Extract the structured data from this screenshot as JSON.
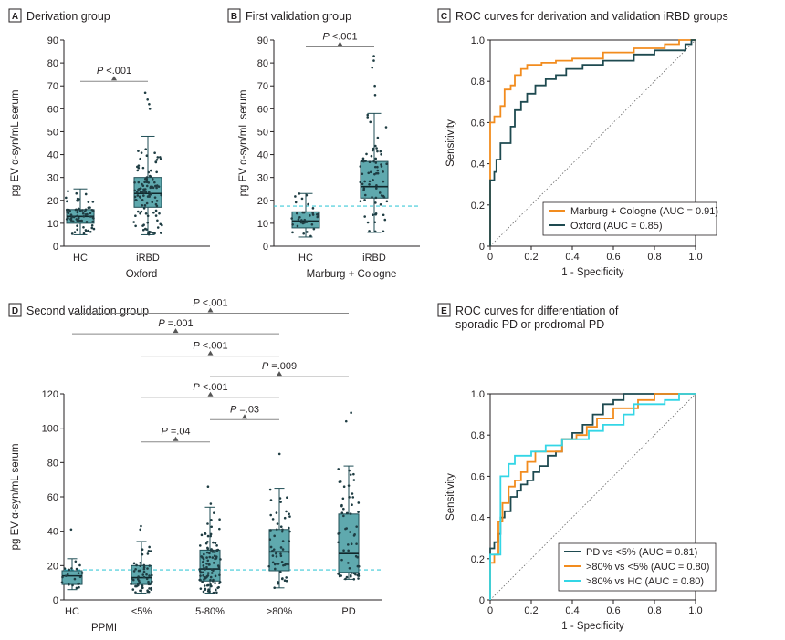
{
  "colors": {
    "box_fill": "#5fa9ae",
    "box_stroke": "#1f4e55",
    "dot": "#1f3d43",
    "cutoff": "#3fc9d8",
    "orange": "#f28c1e",
    "darkteal": "#1e4a50",
    "cyan": "#33d6e6",
    "sig_line": "#888888"
  },
  "chart_data": [
    {
      "id": "A",
      "type": "box",
      "badge": "A",
      "title": "Derivation group",
      "ylabel": "pg EV α-syn/mL serum",
      "xlabel": "Oxford",
      "ylim": [
        0,
        90
      ],
      "yticks": [
        "0",
        "10",
        "20",
        "30",
        "40",
        "50",
        "60",
        "70",
        "80",
        "90"
      ],
      "ytick_values": [
        0,
        10,
        20,
        30,
        40,
        50,
        60,
        70,
        80,
        90
      ],
      "cutoff": null,
      "groups": [
        {
          "name": "HC",
          "q1": 10,
          "median": 13,
          "q3": 16,
          "min": 5,
          "max": 25,
          "n": 70
        },
        {
          "name": "iRBD",
          "q1": 17,
          "median": 23,
          "q3": 30,
          "min": 5,
          "max": 48,
          "n": 110,
          "outliers": [
            60,
            62,
            64,
            67
          ]
        }
      ],
      "annotations": [
        {
          "prefix": "P",
          "text": " <.001",
          "from": 0,
          "to": 1,
          "y": 72
        }
      ]
    },
    {
      "id": "B",
      "type": "box",
      "badge": "B",
      "title": "First validation group",
      "ylabel": "pg EV α-syn/mL serum",
      "xlabel": "Marburg + Cologne",
      "ylim": [
        0,
        90
      ],
      "yticks": [
        "0",
        "10",
        "20",
        "30",
        "40",
        "50",
        "60",
        "70",
        "80",
        "90"
      ],
      "ytick_values": [
        0,
        10,
        20,
        30,
        40,
        50,
        60,
        70,
        80,
        90
      ],
      "cutoff": 17.5,
      "groups": [
        {
          "name": "HC",
          "q1": 8,
          "median": 11,
          "q3": 15,
          "min": 4,
          "max": 23,
          "n": 35
        },
        {
          "name": "iRBD",
          "q1": 21,
          "median": 26,
          "q3": 37,
          "min": 6,
          "max": 58,
          "n": 70,
          "outliers": [
            66,
            70,
            78,
            81,
            83
          ]
        }
      ],
      "annotations": [
        {
          "prefix": "P",
          "text": " <.001",
          "from": 0,
          "to": 1,
          "y": 87
        }
      ]
    },
    {
      "id": "D",
      "type": "box",
      "badge": "D",
      "title": "Second validation group",
      "ylabel": "pg EV α-syn/mL serum",
      "xlabel": "PPMI",
      "ylim": [
        0,
        120
      ],
      "yticks": [
        "0",
        "20",
        "40",
        "60",
        "80",
        "100",
        "120"
      ],
      "ytick_values": [
        0,
        20,
        40,
        60,
        80,
        100,
        120
      ],
      "cutoff": 17.5,
      "groups": [
        {
          "name": "HC",
          "q1": 9,
          "median": 14,
          "q3": 17,
          "min": 6,
          "max": 24,
          "n": 20,
          "outliers": [
            41
          ]
        },
        {
          "name": "<5%",
          "q1": 9,
          "median": 13,
          "q3": 20,
          "min": 4,
          "max": 34,
          "n": 55,
          "outliers": [
            41,
            43
          ]
        },
        {
          "name": "5-80%",
          "q1": 11,
          "median": 18,
          "q3": 29,
          "min": 4,
          "max": 54,
          "n": 100,
          "outliers": [
            56,
            66
          ]
        },
        {
          "name": ">80%",
          "q1": 17,
          "median": 28,
          "q3": 41,
          "min": 7,
          "max": 65,
          "n": 55,
          "outliers": [
            85
          ]
        },
        {
          "name": "PD",
          "q1": 16,
          "median": 27,
          "q3": 50,
          "min": 12,
          "max": 78,
          "n": 60,
          "outliers": [
            104,
            109
          ]
        }
      ],
      "annotations": [
        {
          "prefix": "P",
          "text": " <.001",
          "from": 0,
          "to": 4,
          "y": 167
        },
        {
          "prefix": "P",
          "text": " =.001",
          "from": 0,
          "to": 3,
          "y": 155
        },
        {
          "prefix": "P",
          "text": " <.001",
          "from": 1,
          "to": 3,
          "y": 142
        },
        {
          "prefix": "P",
          "text": " =.009",
          "from": 2,
          "to": 4,
          "y": 130
        },
        {
          "prefix": "P",
          "text": " <.001",
          "from": 1,
          "to": 3,
          "y": 118
        },
        {
          "prefix": "P",
          "text": " =.03",
          "from": 2,
          "to": 3,
          "y": 105
        },
        {
          "prefix": "P",
          "text": " =.04",
          "from": 1,
          "to": 2,
          "y": 92
        }
      ]
    },
    {
      "id": "C",
      "type": "line",
      "badge": "C",
      "title_lines": [
        "ROC curves for derivation and validation iRBD groups"
      ],
      "xlabel": "1 - Specificity",
      "ylabel": "Sensitivity",
      "xlim": [
        0,
        1
      ],
      "ylim": [
        0,
        1
      ],
      "ticks": [
        "0",
        "0.2",
        "0.4",
        "0.6",
        "0.8",
        "1.0"
      ],
      "tick_values": [
        0,
        0.2,
        0.4,
        0.6,
        0.8,
        1.0
      ],
      "series": [
        {
          "name": "Marburg + Cologne (AUC = 0.91)",
          "color": "orange",
          "points": [
            [
              0,
              0
            ],
            [
              0,
              0.42
            ],
            [
              0,
              0.6
            ],
            [
              0.02,
              0.6
            ],
            [
              0.02,
              0.63
            ],
            [
              0.05,
              0.63
            ],
            [
              0.05,
              0.68
            ],
            [
              0.07,
              0.68
            ],
            [
              0.07,
              0.76
            ],
            [
              0.1,
              0.76
            ],
            [
              0.1,
              0.78
            ],
            [
              0.12,
              0.78
            ],
            [
              0.12,
              0.83
            ],
            [
              0.15,
              0.83
            ],
            [
              0.15,
              0.86
            ],
            [
              0.18,
              0.86
            ],
            [
              0.18,
              0.88
            ],
            [
              0.25,
              0.88
            ],
            [
              0.25,
              0.89
            ],
            [
              0.32,
              0.89
            ],
            [
              0.32,
              0.9
            ],
            [
              0.4,
              0.9
            ],
            [
              0.4,
              0.91
            ],
            [
              0.55,
              0.91
            ],
            [
              0.55,
              0.94
            ],
            [
              0.7,
              0.94
            ],
            [
              0.7,
              0.96
            ],
            [
              0.85,
              0.96
            ],
            [
              0.85,
              0.98
            ],
            [
              0.92,
              0.98
            ],
            [
              0.92,
              1.0
            ],
            [
              1,
              1
            ]
          ]
        },
        {
          "name": "Oxford (AUC = 0.85)",
          "color": "darkteal",
          "points": [
            [
              0,
              0
            ],
            [
              0,
              0.32
            ],
            [
              0.02,
              0.32
            ],
            [
              0.02,
              0.36
            ],
            [
              0.03,
              0.36
            ],
            [
              0.03,
              0.42
            ],
            [
              0.05,
              0.42
            ],
            [
              0.05,
              0.5
            ],
            [
              0.1,
              0.5
            ],
            [
              0.1,
              0.58
            ],
            [
              0.12,
              0.58
            ],
            [
              0.12,
              0.66
            ],
            [
              0.15,
              0.66
            ],
            [
              0.15,
              0.7
            ],
            [
              0.18,
              0.7
            ],
            [
              0.18,
              0.74
            ],
            [
              0.22,
              0.74
            ],
            [
              0.22,
              0.78
            ],
            [
              0.27,
              0.78
            ],
            [
              0.27,
              0.81
            ],
            [
              0.32,
              0.81
            ],
            [
              0.32,
              0.83
            ],
            [
              0.37,
              0.83
            ],
            [
              0.37,
              0.86
            ],
            [
              0.45,
              0.86
            ],
            [
              0.45,
              0.88
            ],
            [
              0.55,
              0.88
            ],
            [
              0.55,
              0.9
            ],
            [
              0.7,
              0.9
            ],
            [
              0.7,
              0.93
            ],
            [
              0.8,
              0.93
            ],
            [
              0.8,
              0.95
            ],
            [
              0.95,
              0.95
            ],
            [
              0.95,
              0.98
            ],
            [
              0.98,
              0.98
            ],
            [
              0.98,
              1.0
            ],
            [
              1,
              1
            ]
          ]
        }
      ]
    },
    {
      "id": "E",
      "type": "line",
      "badge": "E",
      "title_lines": [
        "ROC curves for differentiation of",
        "sporadic PD or prodromal PD"
      ],
      "xlabel": "1 - Specificity",
      "ylabel": "Sensitivity",
      "xlim": [
        0,
        1
      ],
      "ylim": [
        0,
        1
      ],
      "ticks": [
        "0",
        "0.2",
        "0.4",
        "0.6",
        "0.8",
        "1.0"
      ],
      "tick_values": [
        0,
        0.2,
        0.4,
        0.6,
        0.8,
        1.0
      ],
      "series": [
        {
          "name": "PD vs <5% (AUC = 0.81)",
          "color": "darkteal",
          "points": [
            [
              0,
              0
            ],
            [
              0,
              0.25
            ],
            [
              0.02,
              0.25
            ],
            [
              0.02,
              0.28
            ],
            [
              0.04,
              0.28
            ],
            [
              0.04,
              0.32
            ],
            [
              0.05,
              0.32
            ],
            [
              0.05,
              0.4
            ],
            [
              0.07,
              0.4
            ],
            [
              0.07,
              0.43
            ],
            [
              0.1,
              0.43
            ],
            [
              0.1,
              0.5
            ],
            [
              0.13,
              0.5
            ],
            [
              0.13,
              0.53
            ],
            [
              0.15,
              0.53
            ],
            [
              0.15,
              0.56
            ],
            [
              0.18,
              0.56
            ],
            [
              0.18,
              0.58
            ],
            [
              0.21,
              0.58
            ],
            [
              0.21,
              0.62
            ],
            [
              0.24,
              0.62
            ],
            [
              0.24,
              0.65
            ],
            [
              0.28,
              0.65
            ],
            [
              0.28,
              0.7
            ],
            [
              0.32,
              0.7
            ],
            [
              0.32,
              0.72
            ],
            [
              0.35,
              0.72
            ],
            [
              0.35,
              0.78
            ],
            [
              0.4,
              0.78
            ],
            [
              0.4,
              0.81
            ],
            [
              0.45,
              0.81
            ],
            [
              0.45,
              0.85
            ],
            [
              0.5,
              0.85
            ],
            [
              0.5,
              0.9
            ],
            [
              0.55,
              0.9
            ],
            [
              0.55,
              0.95
            ],
            [
              0.6,
              0.95
            ],
            [
              0.6,
              0.97
            ],
            [
              0.65,
              0.97
            ],
            [
              0.65,
              1.0
            ],
            [
              1,
              1
            ]
          ]
        },
        {
          "name": ">80% vs <5% (AUC = 0.80)",
          "color": "orange",
          "points": [
            [
              0,
              0
            ],
            [
              0,
              0.18
            ],
            [
              0.02,
              0.18
            ],
            [
              0.02,
              0.22
            ],
            [
              0.04,
              0.22
            ],
            [
              0.04,
              0.38
            ],
            [
              0.06,
              0.38
            ],
            [
              0.06,
              0.47
            ],
            [
              0.09,
              0.47
            ],
            [
              0.09,
              0.55
            ],
            [
              0.12,
              0.55
            ],
            [
              0.12,
              0.58
            ],
            [
              0.15,
              0.58
            ],
            [
              0.15,
              0.62
            ],
            [
              0.18,
              0.62
            ],
            [
              0.18,
              0.67
            ],
            [
              0.22,
              0.67
            ],
            [
              0.22,
              0.72
            ],
            [
              0.35,
              0.72
            ],
            [
              0.35,
              0.78
            ],
            [
              0.42,
              0.78
            ],
            [
              0.42,
              0.8
            ],
            [
              0.47,
              0.8
            ],
            [
              0.47,
              0.84
            ],
            [
              0.52,
              0.84
            ],
            [
              0.52,
              0.88
            ],
            [
              0.6,
              0.88
            ],
            [
              0.6,
              0.93
            ],
            [
              0.72,
              0.93
            ],
            [
              0.72,
              0.97
            ],
            [
              0.8,
              0.97
            ],
            [
              0.8,
              1.0
            ],
            [
              1,
              1
            ]
          ]
        },
        {
          "name": ">80% vs HC (AUC = 0.80)",
          "color": "cyan",
          "points": [
            [
              0,
              0
            ],
            [
              0,
              0.22
            ],
            [
              0.05,
              0.22
            ],
            [
              0.05,
              0.6
            ],
            [
              0.09,
              0.6
            ],
            [
              0.09,
              0.66
            ],
            [
              0.12,
              0.66
            ],
            [
              0.12,
              0.7
            ],
            [
              0.2,
              0.7
            ],
            [
              0.2,
              0.72
            ],
            [
              0.27,
              0.72
            ],
            [
              0.27,
              0.75
            ],
            [
              0.35,
              0.75
            ],
            [
              0.35,
              0.78
            ],
            [
              0.48,
              0.78
            ],
            [
              0.48,
              0.82
            ],
            [
              0.55,
              0.82
            ],
            [
              0.55,
              0.85
            ],
            [
              0.65,
              0.85
            ],
            [
              0.65,
              0.9
            ],
            [
              0.7,
              0.9
            ],
            [
              0.7,
              0.95
            ],
            [
              0.85,
              0.95
            ],
            [
              0.85,
              0.97
            ],
            [
              0.92,
              0.97
            ],
            [
              0.92,
              1.0
            ],
            [
              1,
              1
            ]
          ]
        }
      ]
    }
  ]
}
